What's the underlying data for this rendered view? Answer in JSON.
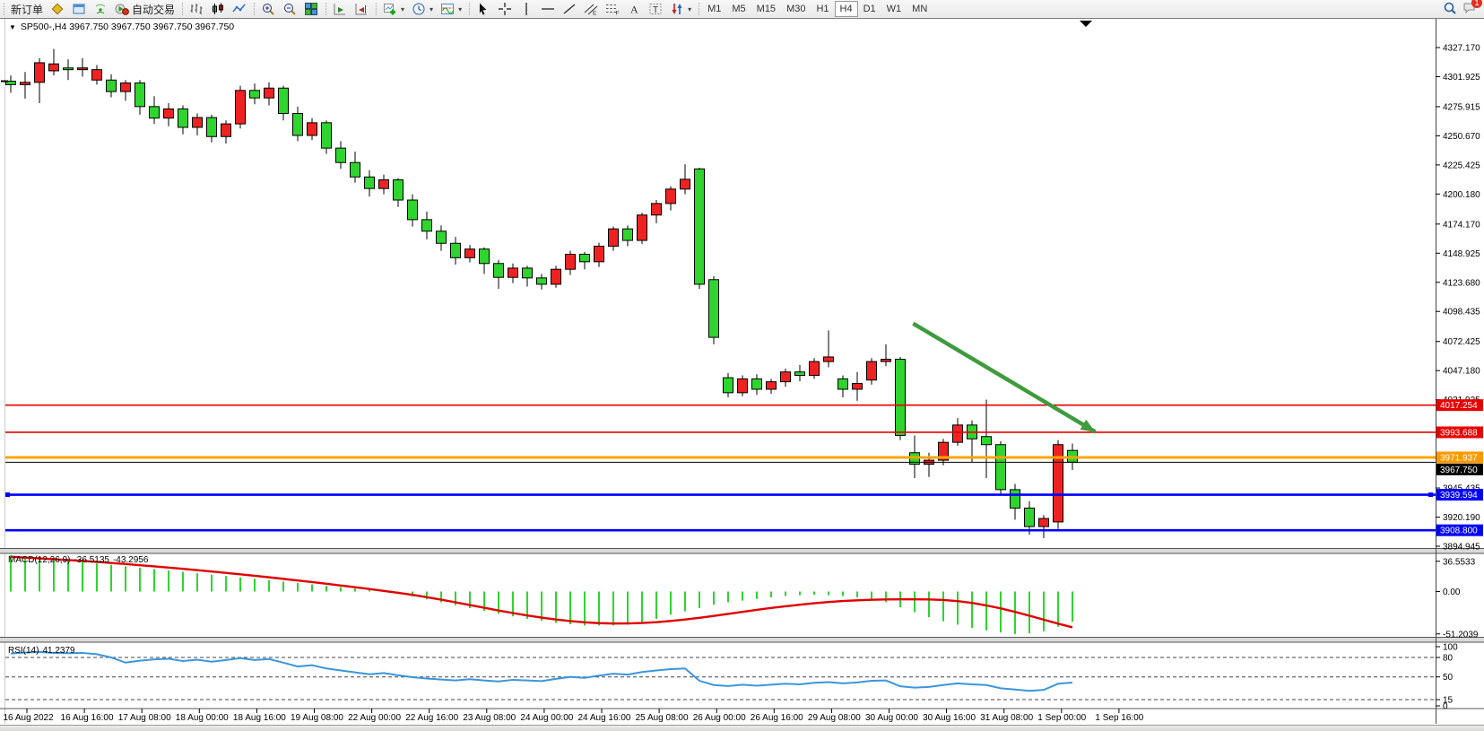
{
  "toolbar": {
    "groups": [
      {
        "items": [
          {
            "name": "new-order-button",
            "label": "新订单"
          },
          {
            "name": "styles-icon-button",
            "icon": "diamond"
          },
          {
            "name": "market-watch-button",
            "icon": "window"
          },
          {
            "name": "signals-button",
            "icon": "signal"
          },
          {
            "name": "autotrade-button",
            "icon": "autotrade",
            "label": "自动交易"
          }
        ]
      },
      {
        "items": [
          {
            "name": "bars-chart-button",
            "icon": "bars"
          },
          {
            "name": "candles-chart-button",
            "icon": "candles"
          },
          {
            "name": "line-chart-button",
            "icon": "linechart"
          }
        ]
      },
      {
        "items": [
          {
            "name": "zoom-in-button",
            "icon": "zoomin"
          },
          {
            "name": "zoom-out-button",
            "icon": "zoomout"
          },
          {
            "name": "tile-windows-button",
            "icon": "tile"
          }
        ]
      },
      {
        "items": [
          {
            "name": "auto-scroll-button",
            "icon": "autoscroll"
          },
          {
            "name": "chart-shift-button",
            "icon": "chartshift"
          }
        ]
      },
      {
        "items": [
          {
            "name": "new-chart-button",
            "icon": "pluschart",
            "dropdown": true
          },
          {
            "name": "profiles-button",
            "icon": "clock",
            "dropdown": true
          },
          {
            "name": "indicators-button",
            "icon": "indicator",
            "dropdown": true
          }
        ]
      },
      {
        "items": [
          {
            "name": "cursor-button",
            "icon": "cursor"
          },
          {
            "name": "crosshair-button",
            "icon": "crosshair"
          },
          {
            "name": "vline-button",
            "icon": "vline"
          },
          {
            "name": "hline-button",
            "icon": "hline"
          },
          {
            "name": "trendline-button",
            "icon": "trendline"
          },
          {
            "name": "channel-button",
            "icon": "channel"
          },
          {
            "name": "fibo-button",
            "icon": "fibo"
          },
          {
            "name": "text-button",
            "icon": "texta"
          },
          {
            "name": "label-button",
            "icon": "textt"
          },
          {
            "name": "arrows-button",
            "icon": "arrows",
            "dropdown": true
          }
        ]
      }
    ],
    "timeframes": [
      "M1",
      "M5",
      "M15",
      "M30",
      "H1",
      "H4",
      "D1",
      "W1",
      "MN"
    ],
    "active_timeframe": "H4",
    "right": [
      {
        "name": "search-button",
        "icon": "magnifier"
      },
      {
        "name": "chat-button",
        "icon": "chat",
        "badge": "1"
      }
    ]
  },
  "chart": {
    "title_line": "SP500-,H4  3967.750 3967.750 3967.750 3967.750"
  },
  "chart_data": {
    "type": "candlestick",
    "symbol": "SP500-",
    "timeframe": "H4",
    "up_color": "#ee2222",
    "down_color": "#2fd42f",
    "ohlc": [
      [
        4298,
        4303,
        4288,
        4295
      ],
      [
        4295,
        4306,
        4283,
        4297
      ],
      [
        4297,
        4318,
        4279,
        4314
      ],
      [
        4307,
        4326,
        4303,
        4313
      ],
      [
        4309.5,
        4317,
        4299,
        4308
      ],
      [
        4308,
        4318,
        4302,
        4309.5
      ],
      [
        4299,
        4312,
        4295,
        4308
      ],
      [
        4299,
        4304,
        4284,
        4289
      ],
      [
        4289,
        4299,
        4281,
        4296.5
      ],
      [
        4296.5,
        4299,
        4269,
        4276
      ],
      [
        4276,
        4285,
        4261,
        4266
      ],
      [
        4266,
        4279,
        4259,
        4274
      ],
      [
        4274,
        4277,
        4252,
        4258
      ],
      [
        4258,
        4270,
        4251,
        4266.5
      ],
      [
        4266.5,
        4269,
        4245,
        4250
      ],
      [
        4250,
        4264,
        4244,
        4261
      ],
      [
        4261,
        4294,
        4257,
        4290
      ],
      [
        4290,
        4296,
        4278,
        4283.5
      ],
      [
        4283.5,
        4297,
        4277,
        4292
      ],
      [
        4292,
        4294,
        4264,
        4270
      ],
      [
        4270,
        4276,
        4246,
        4251
      ],
      [
        4251,
        4266,
        4247,
        4262
      ],
      [
        4262,
        4264,
        4235,
        4240
      ],
      [
        4240,
        4246,
        4222,
        4227.5
      ],
      [
        4227.5,
        4237,
        4210,
        4215
      ],
      [
        4215,
        4221,
        4198,
        4205
      ],
      [
        4205,
        4217,
        4200,
        4212.5
      ],
      [
        4212.5,
        4214,
        4189,
        4195
      ],
      [
        4195,
        4200,
        4172,
        4178
      ],
      [
        4178,
        4185,
        4161,
        4168
      ],
      [
        4168,
        4173,
        4151,
        4157.5
      ],
      [
        4157.5,
        4163,
        4139,
        4145
      ],
      [
        4145,
        4156,
        4141,
        4152.5
      ],
      [
        4152.5,
        4154,
        4131,
        4140
      ],
      [
        4140,
        4143,
        4118,
        4128
      ],
      [
        4128,
        4140,
        4123,
        4136
      ],
      [
        4136,
        4138,
        4120,
        4127.5
      ],
      [
        4127.5,
        4131,
        4117.5,
        4122
      ],
      [
        4122,
        4138,
        4119,
        4135
      ],
      [
        4135,
        4151,
        4130,
        4148
      ],
      [
        4148,
        4150,
        4135,
        4141.5
      ],
      [
        4141.5,
        4158,
        4137,
        4155
      ],
      [
        4155,
        4172,
        4151,
        4170
      ],
      [
        4170,
        4173,
        4155,
        4160
      ],
      [
        4160,
        4184,
        4157,
        4182
      ],
      [
        4182,
        4195,
        4175,
        4192
      ],
      [
        4192,
        4207,
        4186,
        4204.5
      ],
      [
        4204.5,
        4226,
        4200,
        4213
      ],
      [
        4222,
        4223,
        4118,
        4122
      ],
      [
        4126,
        4129,
        4070,
        4076
      ],
      [
        4041,
        4045,
        4024,
        4028
      ],
      [
        4028,
        4043,
        4025,
        4040
      ],
      [
        4040,
        4044,
        4026,
        4031
      ],
      [
        4031,
        4040,
        4027,
        4037.5
      ],
      [
        4037.5,
        4049,
        4033,
        4046
      ],
      [
        4046,
        4052,
        4038,
        4043
      ],
      [
        4043,
        4058,
        4040,
        4055
      ],
      [
        4055,
        4082,
        4050,
        4059
      ],
      [
        4040,
        4043,
        4024,
        4031
      ],
      [
        4031,
        4046,
        4021,
        4036
      ],
      [
        4039,
        4058,
        4035,
        4055
      ],
      [
        4055,
        4070,
        4051,
        4057
      ],
      [
        4057,
        4059,
        3987,
        3991
      ],
      [
        3976,
        3991,
        3954,
        3966
      ],
      [
        3966,
        3976,
        3955,
        3969.5
      ],
      [
        3969.5,
        3988,
        3965,
        3985
      ],
      [
        3985,
        4006,
        3982,
        4000
      ],
      [
        4000,
        4004,
        3968,
        3988
      ],
      [
        3990,
        4022,
        3954,
        3983
      ],
      [
        3983,
        3986,
        3940,
        3944
      ],
      [
        3944,
        3949,
        3918,
        3928
      ],
      [
        3928,
        3934,
        3905,
        3912
      ],
      [
        3912,
        3922,
        3902,
        3919
      ],
      [
        3916,
        3987,
        3910,
        3983
      ],
      [
        3978,
        3984,
        3961,
        3967.75
      ]
    ],
    "x_labels": [
      "16 Aug 2022",
      "16 Aug 16:00",
      "17 Aug 08:00",
      "18 Aug 00:00",
      "18 Aug 16:00",
      "19 Aug 08:00",
      "22 Aug 00:00",
      "22 Aug 16:00",
      "23 Aug 08:00",
      "24 Aug 00:00",
      "24 Aug 16:00",
      "25 Aug 08:00",
      "26 Aug 00:00",
      "26 Aug 16:00",
      "29 Aug 08:00",
      "30 Aug 00:00",
      "30 Aug 16:00",
      "31 Aug 08:00",
      "1 Sep 00:00",
      "1 Sep 16:00"
    ],
    "y_ticks": [
      {
        "value": 4327.17,
        "label": "4327.170"
      },
      {
        "value": 4301.925,
        "label": "4301.925"
      },
      {
        "value": 4275.915,
        "label": "4275.915"
      },
      {
        "value": 4250.67,
        "label": "4250.670"
      },
      {
        "value": 4225.425,
        "label": "4225.425"
      },
      {
        "value": 4200.18,
        "label": "4200.180"
      },
      {
        "value": 4174.17,
        "label": "4174.170"
      },
      {
        "value": 4148.925,
        "label": "4148.925"
      },
      {
        "value": 4123.68,
        "label": "4123.680"
      },
      {
        "value": 4098.435,
        "label": "4098.435"
      },
      {
        "value": 4072.425,
        "label": "4072.425"
      },
      {
        "value": 4047.18,
        "label": "4047.180"
      },
      {
        "value": 4021.925,
        "label": "4021.925"
      },
      {
        "value": 3945.435,
        "label": "3945.435"
      },
      {
        "value": 3920.19,
        "label": "3920.190"
      },
      {
        "value": 3894.945,
        "label": "3894.945"
      }
    ],
    "price_lines": [
      {
        "price": 4017.254,
        "label": "4017.254",
        "color": "#e80000",
        "width": 1.6,
        "kind": "resistance"
      },
      {
        "price": 3993.688,
        "label": "3993.688",
        "color": "#e80000",
        "width": 1.6,
        "kind": "resistance"
      },
      {
        "price": 3971.937,
        "label": "3971.937",
        "color": "#ffa500",
        "width": 3,
        "kind": "pivot"
      },
      {
        "price": 3939.594,
        "label": "3939.594",
        "color": "#0000ff",
        "width": 2.6,
        "kind": "support",
        "handles": true
      },
      {
        "price": 3908.8,
        "label": "3908.800",
        "color": "#0000ff",
        "width": 2.6,
        "kind": "support"
      }
    ],
    "current_price": {
      "value": 3967.75,
      "label": "3967.750",
      "color": "#000000"
    },
    "arrow": {
      "from_bar": 62.9,
      "from_price": 4088,
      "to_bar": 75.6,
      "to_price": 3994,
      "color": "#3e9b3e"
    },
    "macd": {
      "label": "MACD(12,26,9)",
      "value_main": "-36.5135",
      "value_signal": "-43.2956",
      "axis": [
        {
          "value": 36.5533,
          "label": "36.5533"
        },
        {
          "value": 0,
          "label": "0.00"
        },
        {
          "value": -51.2039,
          "label": "-51.2039"
        }
      ],
      "histogram": [
        44,
        42.3,
        40.6,
        39,
        37.3,
        35.6,
        33.9,
        32.2,
        30.5,
        28.8,
        27.2,
        25.5,
        23.8,
        22.1,
        20.4,
        18.7,
        17,
        15.4,
        13.7,
        12,
        10.3,
        8.6,
        6.9,
        5.2,
        3.6,
        1.9,
        0.2,
        -3,
        -6,
        -9.5,
        -13,
        -16.5,
        -20,
        -23.5,
        -27,
        -30,
        -33,
        -35.5,
        -38,
        -39.5,
        -41,
        -41,
        -41,
        -40,
        -37,
        -33,
        -28,
        -24,
        -20,
        -16,
        -13,
        -11,
        -9,
        -7,
        -5.5,
        -4.5,
        -4,
        -4.5,
        -5.5,
        -7,
        -9,
        -13,
        -19,
        -25,
        -31,
        -36,
        -40,
        -44,
        -47,
        -49.5,
        -51.2,
        -50.5,
        -48,
        -42.5,
        -36.5135
      ],
      "signal": [
        42,
        41,
        40,
        39,
        38,
        37,
        35.8,
        34.5,
        33.2,
        31.8,
        30.4,
        28.9,
        27.4,
        25.8,
        24.2,
        22.5,
        20.8,
        19,
        17.2,
        15.3,
        13.4,
        11.4,
        9.4,
        7.3,
        5.2,
        3,
        0.8,
        -1.5,
        -4,
        -6.8,
        -9.8,
        -13,
        -16.3,
        -19.6,
        -22.9,
        -26,
        -28.9,
        -31.5,
        -33.8,
        -35.7,
        -37.2,
        -38.2,
        -38.6,
        -38.5,
        -38,
        -37,
        -35.6,
        -33.8,
        -31.7,
        -29.4,
        -27,
        -24.6,
        -22.2,
        -19.9,
        -17.8,
        -15.9,
        -14.2,
        -12.7,
        -11.5,
        -10.6,
        -10,
        -9.6,
        -9.4,
        -9.4,
        -9.5,
        -10.2,
        -11.6,
        -13.8,
        -16.8,
        -20.4,
        -24.6,
        -29.2,
        -34,
        -38.8,
        -43.2956
      ],
      "histogram_color": "#2fd42f",
      "signal_color": "#e00000"
    },
    "rsi": {
      "label": "RSI(14)",
      "value": "41.2379",
      "levels": [
        80,
        50,
        15
      ],
      "axis": [
        {
          "value": 100,
          "label": "100"
        },
        {
          "value": 80,
          "label": "80"
        },
        {
          "value": 50,
          "label": "50"
        },
        {
          "value": 15,
          "label": "15"
        },
        {
          "value": 0,
          "label": "0"
        }
      ],
      "values": [
        86,
        87.5,
        88.5,
        87,
        86.5,
        87,
        85,
        80,
        72,
        75,
        77,
        78,
        74.5,
        76.5,
        73.5,
        76,
        79,
        76,
        77.5,
        72,
        66,
        68,
        63,
        60,
        57,
        54,
        56,
        52.5,
        49.5,
        47.5,
        46,
        44.5,
        46.5,
        44.5,
        43,
        45.5,
        44.5,
        43.5,
        47,
        50,
        48.5,
        52,
        55,
        53.5,
        57.5,
        60,
        62,
        63,
        44,
        37.5,
        36,
        38,
        36.5,
        38,
        39.5,
        38.5,
        41,
        42,
        40,
        41.5,
        44,
        44.5,
        35.5,
        33.5,
        34.5,
        37.5,
        40,
        38.5,
        37.5,
        32.5,
        30.5,
        28.5,
        30,
        39.5,
        41.2379
      ],
      "line_color": "#3a96dd"
    }
  }
}
